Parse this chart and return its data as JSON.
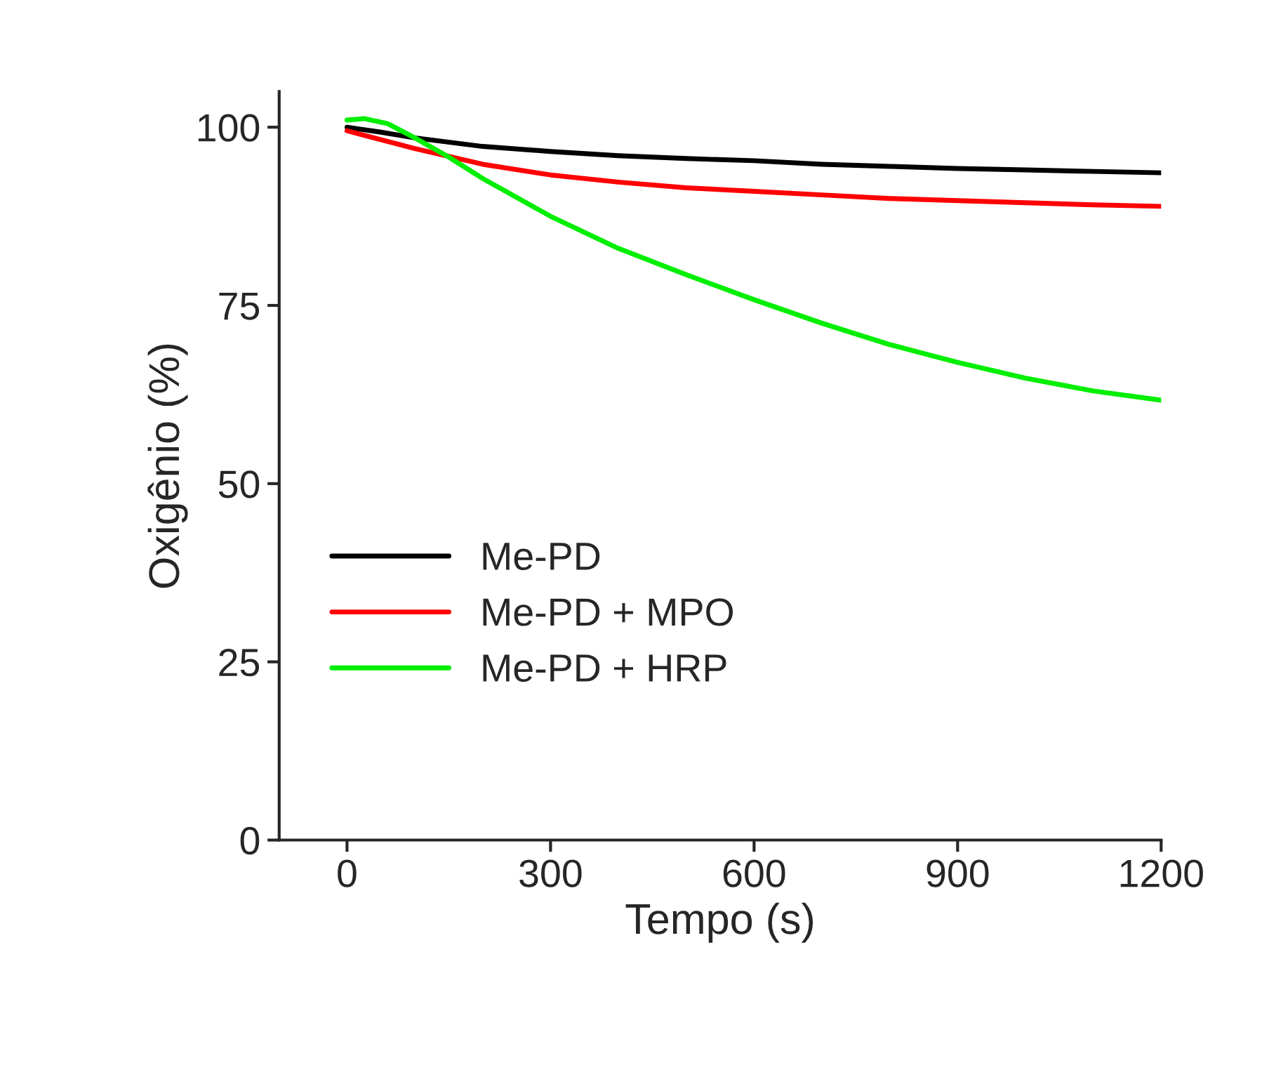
{
  "chart_data": {
    "type": "line",
    "xlabel": "Tempo (s)",
    "ylabel": "Oxigênio (%)",
    "xlim": [
      -100,
      1200
    ],
    "xticks": [
      0,
      300,
      600,
      900,
      1200
    ],
    "ylim": [
      0,
      105
    ],
    "yticks": [
      0,
      25,
      50,
      75,
      100
    ],
    "grid": false,
    "legend": "left",
    "marker": "none",
    "line_style": "solid",
    "series": [
      {
        "name": "Me-PD",
        "color": "#000000",
        "x": [
          0,
          50,
          100,
          200,
          300,
          400,
          500,
          600,
          700,
          800,
          900,
          1000,
          1100,
          1200
        ],
        "values": [
          100,
          99.3,
          98.5,
          97.3,
          96.6,
          96,
          95.6,
          95.3,
          94.8,
          94.5,
          94.2,
          94,
          93.8,
          93.6
        ]
      },
      {
        "name": "Me-PD + MPO",
        "color": "#ff0000",
        "x": [
          0,
          100,
          200,
          300,
          400,
          500,
          600,
          700,
          800,
          900,
          1000,
          1100,
          1200
        ],
        "values": [
          99.5,
          97,
          94.8,
          93.3,
          92.3,
          91.5,
          91,
          90.5,
          90,
          89.7,
          89.4,
          89.1,
          88.9
        ]
      },
      {
        "name": "Me-PD + HRP",
        "color": "#00ee00",
        "x": [
          0,
          25,
          60,
          100,
          150,
          200,
          300,
          400,
          500,
          600,
          700,
          800,
          900,
          1000,
          1100,
          1200
        ],
        "values": [
          101,
          101.2,
          100.5,
          98.5,
          95.8,
          92.8,
          87.5,
          83,
          79.3,
          75.8,
          72.5,
          69.5,
          67,
          64.8,
          63,
          61.7
        ]
      }
    ]
  }
}
